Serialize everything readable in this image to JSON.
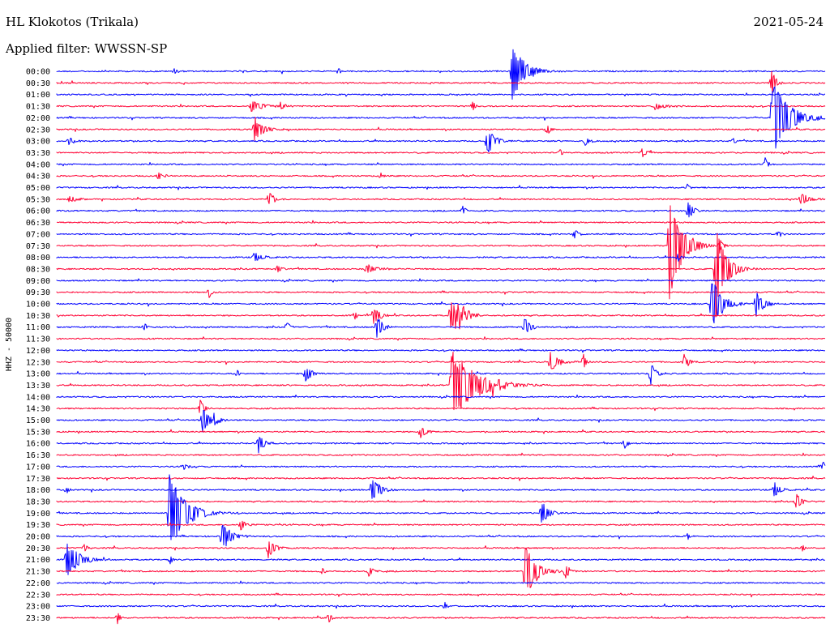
{
  "header": {
    "station": "HL Klokotos (Trikala)",
    "filter": "Applied filter: WWSSN-SP",
    "date": "2021-05-24"
  },
  "chart_data": {
    "type": "line",
    "ylabel": "HHZ - 50000",
    "colors": [
      "#0000ff",
      "#ff0033"
    ],
    "row_labels": [
      "00:00",
      "00:30",
      "01:00",
      "01:30",
      "02:00",
      "02:30",
      "03:00",
      "03:30",
      "04:00",
      "04:30",
      "05:00",
      "05:30",
      "06:00",
      "06:30",
      "07:00",
      "07:30",
      "08:00",
      "08:30",
      "09:00",
      "09:30",
      "10:00",
      "10:30",
      "11:00",
      "11:30",
      "12:00",
      "12:30",
      "13:00",
      "13:30",
      "14:00",
      "14:30",
      "15:00",
      "15:30",
      "16:00",
      "16:30",
      "17:00",
      "17:30",
      "18:00",
      "18:30",
      "19:00",
      "19:30",
      "20:00",
      "20:30",
      "21:00",
      "21:30",
      "22:00",
      "22:30",
      "23:00",
      "23:30"
    ],
    "events": [
      {
        "row": 0,
        "x": 632,
        "amp": 38,
        "dur": 30
      },
      {
        "row": 0,
        "x": 215,
        "amp": 4,
        "dur": 6
      },
      {
        "row": 0,
        "x": 418,
        "amp": 4,
        "dur": 6
      },
      {
        "row": 1,
        "x": 952,
        "amp": 18,
        "dur": 10
      },
      {
        "row": 3,
        "x": 310,
        "amp": 8,
        "dur": 30
      },
      {
        "row": 3,
        "x": 346,
        "amp": 6,
        "dur": 10
      },
      {
        "row": 3,
        "x": 583,
        "amp": 6,
        "dur": 8
      },
      {
        "row": 3,
        "x": 808,
        "amp": 4,
        "dur": 30
      },
      {
        "row": 4,
        "x": 953,
        "amp": 48,
        "dur": 40
      },
      {
        "row": 5,
        "x": 314,
        "amp": 16,
        "dur": 20
      },
      {
        "row": 5,
        "x": 675,
        "amp": 8,
        "dur": 10
      },
      {
        "row": 6,
        "x": 601,
        "amp": 18,
        "dur": 18
      },
      {
        "row": 6,
        "x": 722,
        "amp": 8,
        "dur": 8
      },
      {
        "row": 6,
        "x": 85,
        "amp": 4,
        "dur": 20
      },
      {
        "row": 6,
        "x": 905,
        "amp": 4,
        "dur": 6
      },
      {
        "row": 7,
        "x": 792,
        "amp": 7,
        "dur": 12
      },
      {
        "row": 7,
        "x": 691,
        "amp": 4,
        "dur": 8
      },
      {
        "row": 8,
        "x": 944,
        "amp": 8,
        "dur": 8
      },
      {
        "row": 9,
        "x": 195,
        "amp": 4,
        "dur": 20
      },
      {
        "row": 9,
        "x": 470,
        "amp": 4,
        "dur": 6
      },
      {
        "row": 10,
        "x": 848,
        "amp": 5,
        "dur": 6
      },
      {
        "row": 11,
        "x": 332,
        "amp": 10,
        "dur": 12
      },
      {
        "row": 11,
        "x": 988,
        "amp": 8,
        "dur": 20
      },
      {
        "row": 11,
        "x": 85,
        "amp": 4,
        "dur": 20
      },
      {
        "row": 12,
        "x": 849,
        "amp": 12,
        "dur": 12
      },
      {
        "row": 12,
        "x": 571,
        "amp": 8,
        "dur": 8
      },
      {
        "row": 14,
        "x": 709,
        "amp": 8,
        "dur": 8
      },
      {
        "row": 14,
        "x": 960,
        "amp": 6,
        "dur": 8
      },
      {
        "row": 15,
        "x": 826,
        "amp": 70,
        "dur": 30
      },
      {
        "row": 15,
        "x": 888,
        "amp": 10,
        "dur": 8
      },
      {
        "row": 16,
        "x": 313,
        "amp": 8,
        "dur": 20
      },
      {
        "row": 16,
        "x": 836,
        "amp": 6,
        "dur": 6
      },
      {
        "row": 17,
        "x": 452,
        "amp": 7,
        "dur": 25
      },
      {
        "row": 17,
        "x": 342,
        "amp": 6,
        "dur": 8
      },
      {
        "row": 17,
        "x": 883,
        "amp": 60,
        "dur": 25
      },
      {
        "row": 19,
        "x": 258,
        "amp": 8,
        "dur": 6
      },
      {
        "row": 20,
        "x": 878,
        "amp": 36,
        "dur": 25
      },
      {
        "row": 20,
        "x": 933,
        "amp": 16,
        "dur": 20
      },
      {
        "row": 21,
        "x": 556,
        "amp": 22,
        "dur": 20
      },
      {
        "row": 21,
        "x": 563,
        "amp": 24,
        "dur": 20
      },
      {
        "row": 21,
        "x": 461,
        "amp": 14,
        "dur": 14
      },
      {
        "row": 21,
        "x": 438,
        "amp": 6,
        "dur": 6
      },
      {
        "row": 22,
        "x": 465,
        "amp": 14,
        "dur": 16
      },
      {
        "row": 22,
        "x": 647,
        "amp": 12,
        "dur": 14
      },
      {
        "row": 22,
        "x": 354,
        "amp": 7,
        "dur": 10
      },
      {
        "row": 22,
        "x": 178,
        "amp": 6,
        "dur": 8
      },
      {
        "row": 25,
        "x": 679,
        "amp": 12,
        "dur": 20
      },
      {
        "row": 25,
        "x": 844,
        "amp": 10,
        "dur": 12
      },
      {
        "row": 25,
        "x": 720,
        "amp": 12,
        "dur": 6
      },
      {
        "row": 26,
        "x": 377,
        "amp": 12,
        "dur": 14
      },
      {
        "row": 26,
        "x": 803,
        "amp": 14,
        "dur": 12
      },
      {
        "row": 26,
        "x": 293,
        "amp": 6,
        "dur": 6
      },
      {
        "row": 27,
        "x": 557,
        "amp": 45,
        "dur": 60
      },
      {
        "row": 27,
        "x": 608,
        "amp": 12,
        "dur": 16
      },
      {
        "row": 29,
        "x": 247,
        "amp": 12,
        "dur": 10
      },
      {
        "row": 30,
        "x": 250,
        "amp": 16,
        "dur": 18
      },
      {
        "row": 30,
        "x": 264,
        "amp": 8,
        "dur": 10
      },
      {
        "row": 31,
        "x": 519,
        "amp": 8,
        "dur": 14
      },
      {
        "row": 32,
        "x": 319,
        "amp": 12,
        "dur": 14
      },
      {
        "row": 32,
        "x": 771,
        "amp": 6,
        "dur": 8
      },
      {
        "row": 34,
        "x": 1015,
        "amp": 8,
        "dur": 6
      },
      {
        "row": 34,
        "x": 227,
        "amp": 4,
        "dur": 10
      },
      {
        "row": 36,
        "x": 459,
        "amp": 16,
        "dur": 20
      },
      {
        "row": 36,
        "x": 955,
        "amp": 12,
        "dur": 14
      },
      {
        "row": 36,
        "x": 82,
        "amp": 4,
        "dur": 6
      },
      {
        "row": 37,
        "x": 982,
        "amp": 10,
        "dur": 14
      },
      {
        "row": 38,
        "x": 209,
        "amp": 50,
        "dur": 40
      },
      {
        "row": 38,
        "x": 668,
        "amp": 16,
        "dur": 16
      },
      {
        "row": 39,
        "x": 297,
        "amp": 8,
        "dur": 12
      },
      {
        "row": 40,
        "x": 274,
        "amp": 20,
        "dur": 20
      },
      {
        "row": 40,
        "x": 848,
        "amp": 5,
        "dur": 6
      },
      {
        "row": 41,
        "x": 331,
        "amp": 14,
        "dur": 16
      },
      {
        "row": 41,
        "x": 104,
        "amp": 6,
        "dur": 8
      },
      {
        "row": 41,
        "x": 990,
        "amp": 5,
        "dur": 6
      },
      {
        "row": 42,
        "x": 82,
        "amp": 24,
        "dur": 30
      },
      {
        "row": 42,
        "x": 210,
        "amp": 6,
        "dur": 6
      },
      {
        "row": 43,
        "x": 648,
        "amp": 40,
        "dur": 25
      },
      {
        "row": 43,
        "x": 698,
        "amp": 12,
        "dur": 8
      },
      {
        "row": 43,
        "x": 455,
        "amp": 8,
        "dur": 10
      },
      {
        "row": 43,
        "x": 397,
        "amp": 5,
        "dur": 6
      },
      {
        "row": 46,
        "x": 549,
        "amp": 5,
        "dur": 6
      },
      {
        "row": 47,
        "x": 145,
        "amp": 7,
        "dur": 8
      },
      {
        "row": 47,
        "x": 406,
        "amp": 6,
        "dur": 8
      }
    ]
  }
}
